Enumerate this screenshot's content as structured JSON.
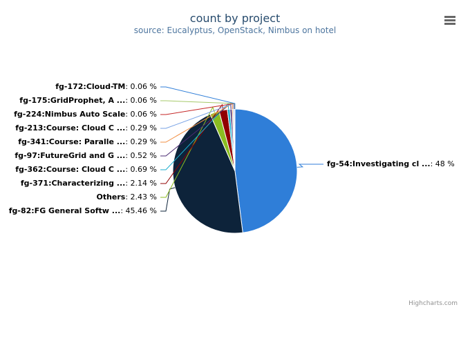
{
  "chart_data": {
    "type": "pie",
    "title": "count by project",
    "subtitle": "source: Eucalyptus, OpenStack, Nimbus on hotel",
    "slices": [
      {
        "label": "fg-54:Investigating cl ...",
        "value": 48,
        "value_text": "48 %",
        "color": "#2f7ed8"
      },
      {
        "label": "fg-82:FG General Softw ...",
        "value": 45.46,
        "value_text": "45.46 %",
        "color": "#0d233a"
      },
      {
        "label": "Others",
        "value": 2.43,
        "value_text": "2.43 %",
        "color": "#8bbc21"
      },
      {
        "label": "fg-371:Characterizing ...",
        "value": 2.14,
        "value_text": "2.14 %",
        "color": "#910000"
      },
      {
        "label": "fg-362:Course: Cloud C ...",
        "value": 0.69,
        "value_text": "0.69 %",
        "color": "#1aadce"
      },
      {
        "label": "fg-97:FutureGrid and G ...",
        "value": 0.52,
        "value_text": "0.52 %",
        "color": "#492970"
      },
      {
        "label": "fg-341:Course: Paralle ...",
        "value": 0.29,
        "value_text": "0.29 %",
        "color": "#f28f43"
      },
      {
        "label": "fg-213:Course: Cloud C ...",
        "value": 0.29,
        "value_text": "0.29 %",
        "color": "#77a1e5"
      },
      {
        "label": "fg-224:Nimbus Auto Scale",
        "value": 0.06,
        "value_text": "0.06 %",
        "color": "#c42525"
      },
      {
        "label": "fg-175:GridProphet, A ...",
        "value": 0.06,
        "value_text": "0.06 %",
        "color": "#a6c96a"
      },
      {
        "label": "fg-172:Cloud-TM",
        "value": 0.06,
        "value_text": "0.06 %",
        "color": "#2f7ed8"
      }
    ],
    "label_separator": ": "
  },
  "credits": "Highcharts.com",
  "icons": {
    "menu": "hamburger-menu-icon"
  }
}
